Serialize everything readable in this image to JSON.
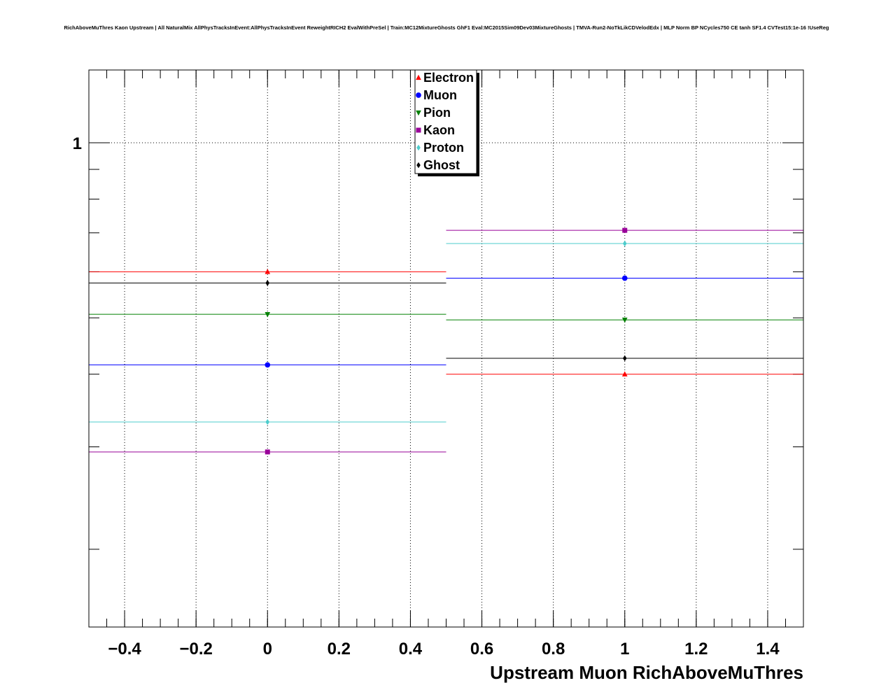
{
  "chart_data": {
    "type": "scatter",
    "title": "RichAboveMuThres Kaon Upstream | All NaturalMix AllPhysTracksInEvent:AllPhysTracksInEvent ReweightRICH2 EvalWithPreSel | Train:MC12MixtureGhosts GhF1 Eval:MC2015Sim09Dev03MixtureGhosts | TMVA-Run2-NoTkLikCDVelodEdx | MLP Norm BP NCycles750 CE tanh SF1.4 CVTest15:1e-16 !UseReg",
    "xlabel": "Upstream Muon RichAboveMuThres",
    "ylabel": "",
    "xlim": [
      -0.5,
      1.5
    ],
    "ylim": [
      0.147,
      1.334
    ],
    "yscale": "log",
    "grid": true,
    "legend_position": "top-center",
    "x": [
      0,
      1
    ],
    "xtick_labels": [
      "−0.4",
      "−0.2",
      "0",
      "0.2",
      "0.4",
      "0.6",
      "0.8",
      "1",
      "1.2",
      "1.4"
    ],
    "xticks": [
      -0.4,
      -0.2,
      0,
      0.2,
      0.4,
      0.6,
      0.8,
      1,
      1.2,
      1.4
    ],
    "ytick_labels": [
      "1"
    ],
    "yticks": [
      1
    ],
    "series": [
      {
        "name": "Electron",
        "color": "#ff0000",
        "marker": "triangle-up",
        "values": [
          0.6,
          0.4
        ]
      },
      {
        "name": "Muon",
        "color": "#0000ff",
        "marker": "circle",
        "values": [
          0.415,
          0.585
        ]
      },
      {
        "name": "Pion",
        "color": "#008000",
        "marker": "triangle-down",
        "values": [
          0.507,
          0.496
        ]
      },
      {
        "name": "Kaon",
        "color": "#990099",
        "marker": "square",
        "values": [
          0.294,
          0.707
        ]
      },
      {
        "name": "Proton",
        "color": "#4dcccc",
        "marker": "diamond",
        "values": [
          0.331,
          0.671
        ]
      },
      {
        "name": "Ghost",
        "color": "#000000",
        "marker": "diamond",
        "values": [
          0.574,
          0.426
        ]
      }
    ]
  }
}
